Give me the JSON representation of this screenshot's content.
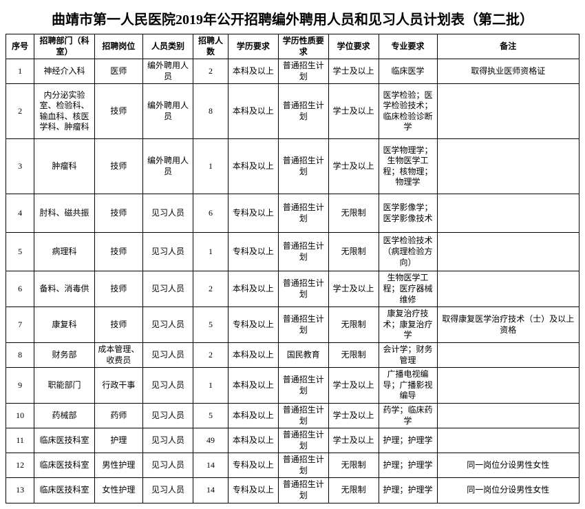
{
  "title": "曲靖市第一人民医院2019年公开招聘编外聘用人员和见习人员计划表（第二批）",
  "columns": [
    "序号",
    "招聘部门（科室）",
    "招聘岗位",
    "人员类别",
    "招聘人数",
    "学历要求",
    "学历性质要求",
    "学位要求",
    "专业要求",
    "备注"
  ],
  "rows": [
    {
      "no": "1",
      "dept": "神经介入科",
      "pos": "医师",
      "type": "编外聘用人员",
      "num": "2",
      "edu": "本科及以上",
      "nat": "普通招生计划",
      "deg": "学士及以上",
      "maj": "临床医学",
      "note": "取得执业医师资格证"
    },
    {
      "no": "2",
      "dept": "内分泌实验室、检验科、输血科、核医学科、肿瘤科",
      "pos": "技师",
      "type": "编外聘用人员",
      "num": "8",
      "edu": "本科及以上",
      "nat": "普通招生计划",
      "deg": "学士及以上",
      "maj": "医学检验；医学检验技术；临床检验诊断学",
      "note": ""
    },
    {
      "no": "3",
      "dept": "肿瘤科",
      "pos": "技师",
      "type": "编外聘用人员",
      "num": "1",
      "edu": "本科及以上",
      "nat": "普通招生计划",
      "deg": "学士及以上",
      "maj": "医学物理学；生物医学工程；核物理；物理学",
      "note": ""
    },
    {
      "no": "4",
      "dept": "肘科、磁共振",
      "pos": "技师",
      "type": "见习人员",
      "num": "6",
      "edu": "专科及以上",
      "nat": "普通招生计划",
      "deg": "无限制",
      "maj": "医学影像学；医学影像技术",
      "note": ""
    },
    {
      "no": "5",
      "dept": "病理科",
      "pos": "技师",
      "type": "见习人员",
      "num": "1",
      "edu": "专科及以上",
      "nat": "普通招生计划",
      "deg": "无限制",
      "maj": "医学检验技术（病理检验方向）",
      "note": ""
    },
    {
      "no": "6",
      "dept": "备料、消毒供",
      "pos": "技师",
      "type": "见习人员",
      "num": "2",
      "edu": "本科及以上",
      "nat": "普通招生计划",
      "deg": "学士及以上",
      "maj": "生物医学工程；医疗器械维修",
      "note": ""
    },
    {
      "no": "7",
      "dept": "康复科",
      "pos": "技师",
      "type": "见习人员",
      "num": "5",
      "edu": "专科及以上",
      "nat": "普通招生计划",
      "deg": "无限制",
      "maj": "康复治疗技术；康复治疗学",
      "note": "取得康复医学治疗技术（士）及以上资格"
    },
    {
      "no": "8",
      "dept": "财务部",
      "pos": "成本管理、收费员",
      "type": "见习人员",
      "num": "2",
      "edu": "本科及以上",
      "nat": "国民教育",
      "deg": "无限制",
      "maj": "会计学；财务管理",
      "note": ""
    },
    {
      "no": "9",
      "dept": "职能部门",
      "pos": "行政干事",
      "type": "见习人员",
      "num": "1",
      "edu": "本科及以上",
      "nat": "普通招生计划",
      "deg": "学士及以上",
      "maj": "广播电视编导；广播影视编导",
      "note": ""
    },
    {
      "no": "10",
      "dept": "药械部",
      "pos": "药师",
      "type": "见习人员",
      "num": "5",
      "edu": "本科及以上",
      "nat": "普通招生计划",
      "deg": "学士及以上",
      "maj": "药学；临床药学",
      "note": ""
    },
    {
      "no": "11",
      "dept": "临床医技科室",
      "pos": "护理",
      "type": "见习人员",
      "num": "49",
      "edu": "本科及以上",
      "nat": "普通招生计划",
      "deg": "学士及以上",
      "maj": "护理；护理学",
      "note": ""
    },
    {
      "no": "12",
      "dept": "临床医技科室",
      "pos": "男性护理",
      "type": "见习人员",
      "num": "14",
      "edu": "专科及以上",
      "nat": "普通招生计划",
      "deg": "无限制",
      "maj": "护理；护理学",
      "note": "同一岗位分设男性女性"
    },
    {
      "no": "13",
      "dept": "临床医技科室",
      "pos": "女性护理",
      "type": "见习人员",
      "num": "14",
      "edu": "专科及以上",
      "nat": "普通招生计划",
      "deg": "无限制",
      "maj": "护理；护理学",
      "note": "同一岗位分设男性女性"
    }
  ],
  "style": {
    "title_fontsize": 20,
    "cell_fontsize": 12,
    "border_color": "#000000",
    "background_color": "#ffffff",
    "font_family": "SimSun"
  }
}
